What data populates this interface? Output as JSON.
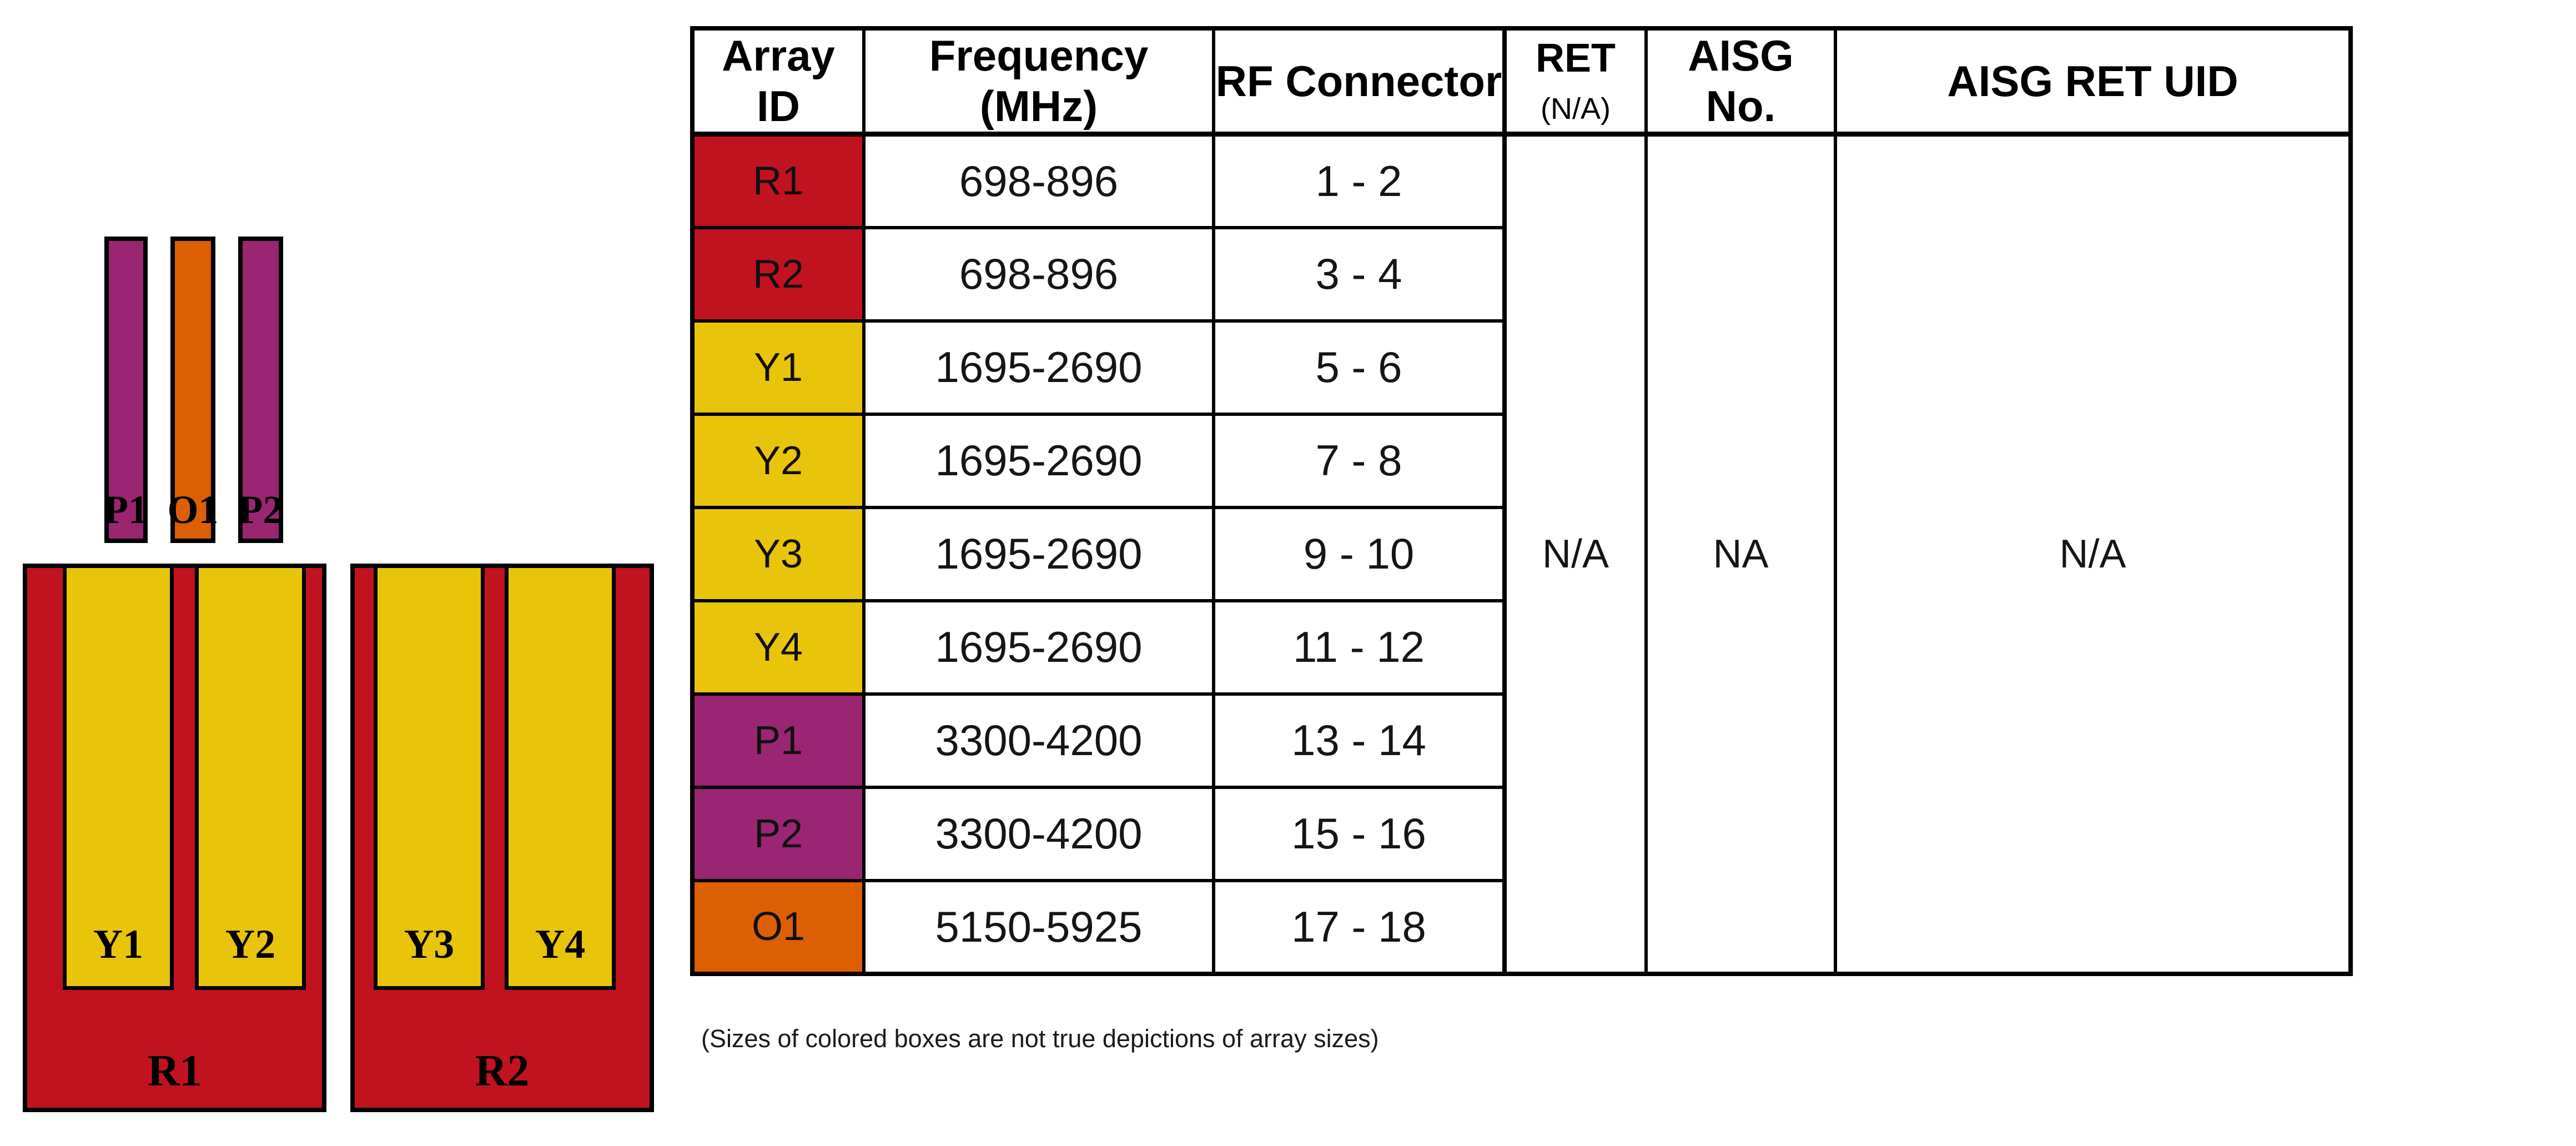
{
  "colors": {
    "red": "#C1121F",
    "yellow": "#E8C50A",
    "purple": "#9A2572",
    "orange": "#DD5F04",
    "border": "#000000"
  },
  "diagram": {
    "top_bars": [
      {
        "label": "P1",
        "color": "purple"
      },
      {
        "label": "O1",
        "color": "orange"
      },
      {
        "label": "P2",
        "color": "purple"
      }
    ],
    "panels": [
      {
        "label": "R1",
        "color": "red",
        "sub_arrays": [
          {
            "label": "Y1",
            "color": "yellow"
          },
          {
            "label": "Y2",
            "color": "yellow"
          }
        ]
      },
      {
        "label": "R2",
        "color": "red",
        "sub_arrays": [
          {
            "label": "Y3",
            "color": "yellow"
          },
          {
            "label": "Y4",
            "color": "yellow"
          }
        ]
      }
    ],
    "note": "(Sizes of colored boxes are not true depictions of array sizes)"
  },
  "table": {
    "headers": {
      "array_id": "Array ID",
      "frequency": "Frequency (MHz)",
      "rf_connector": "RF Connector",
      "ret": "RET",
      "ret_sub": "(N/A)",
      "aisg_no": "AISG No.",
      "aisg_ret_uid": "AISG RET UID"
    },
    "rows": [
      {
        "array_id": "R1",
        "color": "red",
        "frequency": "698-896",
        "rf_connector": "1 - 2"
      },
      {
        "array_id": "R2",
        "color": "red",
        "frequency": "698-896",
        "rf_connector": "3 - 4"
      },
      {
        "array_id": "Y1",
        "color": "yellow",
        "frequency": "1695-2690",
        "rf_connector": "5 - 6"
      },
      {
        "array_id": "Y2",
        "color": "yellow",
        "frequency": "1695-2690",
        "rf_connector": "7 - 8"
      },
      {
        "array_id": "Y3",
        "color": "yellow",
        "frequency": "1695-2690",
        "rf_connector": "9 - 10"
      },
      {
        "array_id": "Y4",
        "color": "yellow",
        "frequency": "1695-2690",
        "rf_connector": "11 - 12"
      },
      {
        "array_id": "P1",
        "color": "purple",
        "frequency": "3300-4200",
        "rf_connector": "13 - 14"
      },
      {
        "array_id": "P2",
        "color": "purple",
        "frequency": "3300-4200",
        "rf_connector": "15 - 16"
      },
      {
        "array_id": "O1",
        "color": "orange",
        "frequency": "5150-5925",
        "rf_connector": "17 - 18"
      }
    ],
    "merged": {
      "ret": "N/A",
      "aisg_no": "NA",
      "aisg_ret_uid": "N/A"
    }
  }
}
